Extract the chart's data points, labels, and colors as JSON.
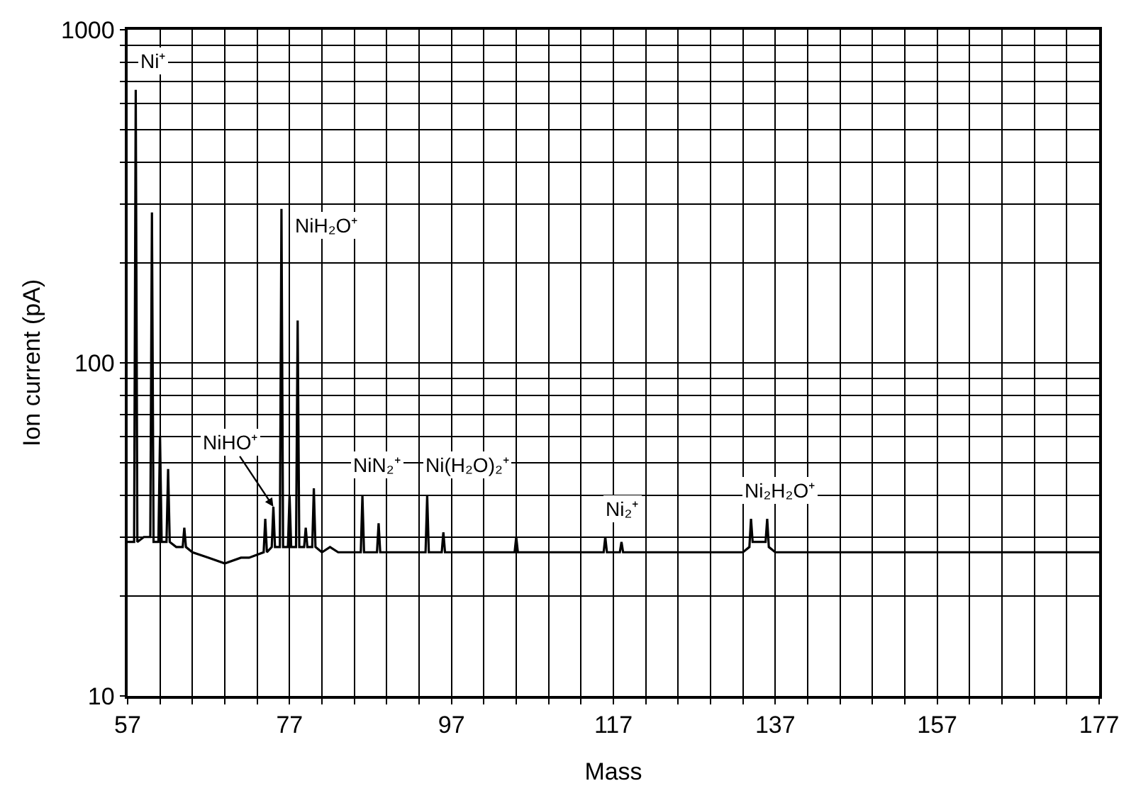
{
  "chart_data": {
    "type": "line",
    "xlabel": "Mass",
    "ylabel": "Ion current (pA)",
    "log": "y",
    "grid": true,
    "marker": "none",
    "line_style": "solid",
    "xlim": [
      57,
      177
    ],
    "xticks": [
      57,
      {
        "value": 61,
        "label": null
      },
      {
        "value": 65,
        "label": null
      },
      {
        "value": 69,
        "label": null
      },
      {
        "value": 73,
        "label": null
      },
      77,
      {
        "value": 81,
        "label": null
      },
      {
        "value": 85,
        "label": null
      },
      {
        "value": 89,
        "label": null
      },
      {
        "value": 93,
        "label": null
      },
      97,
      {
        "value": 101,
        "label": null
      },
      {
        "value": 105,
        "label": null
      },
      {
        "value": 109,
        "label": null
      },
      {
        "value": 113,
        "label": null
      },
      117,
      {
        "value": 121,
        "label": null
      },
      {
        "value": 125,
        "label": null
      },
      {
        "value": 129,
        "label": null
      },
      {
        "value": 133,
        "label": null
      },
      137,
      {
        "value": 141,
        "label": null
      },
      {
        "value": 145,
        "label": null
      },
      {
        "value": 149,
        "label": null
      },
      {
        "value": 153,
        "label": null
      },
      157,
      {
        "value": 161,
        "label": null
      },
      {
        "value": 165,
        "label": null
      },
      {
        "value": 169,
        "label": null
      },
      {
        "value": 173,
        "label": null
      },
      177
    ],
    "ylim": [
      10,
      1000
    ],
    "yticks": [
      10,
      {
        "value": 20,
        "label": null
      },
      {
        "value": 30,
        "label": null
      },
      {
        "value": 40,
        "label": null
      },
      {
        "value": 50,
        "label": null
      },
      {
        "value": 60,
        "label": null
      },
      {
        "value": 70,
        "label": null
      },
      {
        "value": 80,
        "label": null
      },
      {
        "value": 90,
        "label": null
      },
      100,
      {
        "value": 200,
        "label": null
      },
      {
        "value": 300,
        "label": null
      },
      {
        "value": 400,
        "label": null
      },
      {
        "value": 500,
        "label": null
      },
      {
        "value": 600,
        "label": null
      },
      {
        "value": 700,
        "label": null
      },
      {
        "value": 800,
        "label": null
      },
      {
        "value": 900,
        "label": null
      },
      1000
    ],
    "series": [
      {
        "color": "#000000",
        "x": [
          57,
          57.8,
          58,
          58.2,
          59,
          59.8,
          60,
          60.2,
          60.8,
          61,
          61.2,
          61.8,
          62,
          62.2,
          63,
          63.8,
          64,
          64.2,
          65,
          67,
          69,
          71,
          72,
          73.8,
          74,
          74.2,
          74.8,
          75,
          75.2,
          75.8,
          76,
          76.2,
          76.8,
          77,
          77.2,
          77.8,
          78,
          78.2,
          78.8,
          79,
          79.2,
          79.8,
          80,
          80.2,
          81,
          82,
          83,
          84,
          85.8,
          86,
          86.2,
          87,
          87.8,
          88,
          88.2,
          89,
          91,
          93,
          93.8,
          94,
          94.2,
          95,
          95.8,
          96,
          96.2,
          97,
          99,
          101,
          103,
          104.8,
          105,
          105.2,
          107,
          109,
          111,
          113,
          115,
          115.8,
          116,
          116.2,
          117,
          117.8,
          118,
          118.2,
          119,
          121,
          123,
          125,
          127,
          129,
          131,
          133,
          133.8,
          134,
          134.2,
          135,
          135.8,
          136,
          136.2,
          137,
          139,
          141,
          145,
          149,
          153,
          157,
          161,
          165,
          169,
          173,
          177
        ],
        "values": [
          29,
          29,
          660,
          29,
          30,
          30,
          283,
          29,
          29,
          60,
          29,
          29,
          48,
          29,
          28,
          28,
          32,
          28,
          27,
          26,
          25,
          26,
          26,
          27,
          34,
          27,
          28,
          37,
          28,
          28,
          290,
          28,
          28,
          40,
          28,
          28,
          134,
          28,
          28,
          32,
          28,
          28,
          42,
          28,
          27,
          28,
          27,
          27,
          27,
          40,
          27,
          27,
          27,
          33,
          27,
          27,
          27,
          27,
          27,
          40,
          27,
          27,
          27,
          31,
          27,
          27,
          27,
          27,
          27,
          27,
          30,
          27,
          27,
          27,
          27,
          27,
          27,
          27,
          30,
          27,
          27,
          27,
          29,
          27,
          27,
          27,
          27,
          27,
          27,
          27,
          27,
          27,
          28,
          34,
          29,
          29,
          29,
          34,
          28,
          27,
          27,
          27,
          27,
          27,
          27,
          27,
          27,
          27,
          27,
          27,
          27
        ]
      }
    ],
    "annotations": [
      {
        "text": "Ni⁺",
        "x": 58,
        "y": 660
      },
      {
        "text": "NiH₂O⁺",
        "x": 76,
        "y": 290
      },
      {
        "text": "NiHO⁺",
        "x": 75,
        "y": 37
      },
      {
        "text": "NiN₂⁺",
        "x": 86,
        "y": 40
      },
      {
        "text": "Ni(H₂O)₂⁺",
        "x": 94,
        "y": 40
      },
      {
        "text": "Ni₂⁺",
        "x": 116,
        "y": 30
      },
      {
        "text": "Ni₂H₂O⁺",
        "x": 134,
        "y": 34
      }
    ]
  }
}
